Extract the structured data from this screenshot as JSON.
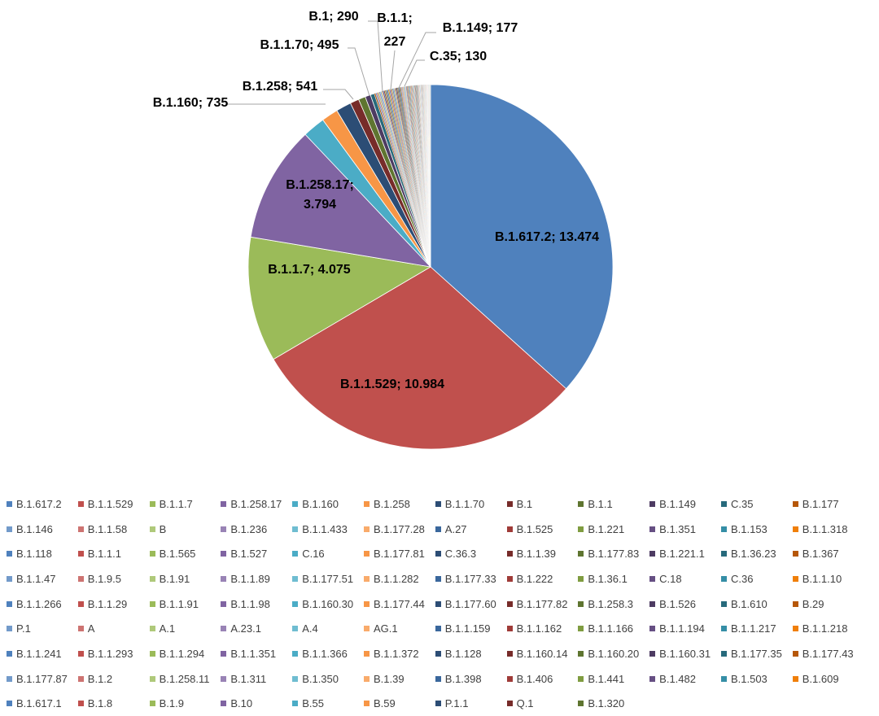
{
  "chart_data": {
    "type": "pie",
    "title": "",
    "legend_position": "bottom",
    "slices": [
      {
        "label": "B.1.617.2",
        "value": 13474,
        "display": "13.474",
        "color": "#4F81BD",
        "label_text": "B.1.617.2; 13.474"
      },
      {
        "label": "B.1.1.529",
        "value": 10984,
        "display": "10.984",
        "color": "#C0504D",
        "label_text": "B.1.1.529; 10.984"
      },
      {
        "label": "B.1.1.7",
        "value": 4075,
        "display": "4.075",
        "color": "#9BBB59",
        "label_text": "B.1.1.7; 4.075"
      },
      {
        "label": "B.1.258.17",
        "value": 3794,
        "display": "3.794",
        "color": "#8064A2",
        "label_text": "B.1.258.17; 3.794"
      },
      {
        "label": "B.1.160",
        "value": 735,
        "display": "735",
        "color": "#4BACC6",
        "label_text": "B.1.160; 735"
      },
      {
        "label": "B.1.258",
        "value": 541,
        "display": "541",
        "color": "#F79646",
        "label_text": "B.1.258; 541"
      },
      {
        "label": "B.1.1.70",
        "value": 495,
        "display": "495",
        "color": "#2C4D75",
        "label_text": "B.1.1.70; 495"
      },
      {
        "label": "B.1",
        "value": 290,
        "display": "290",
        "color": "#772C2A",
        "label_text": "B.1; 290"
      },
      {
        "label": "B.1.1",
        "value": 227,
        "display": "227",
        "color": "#5F7530",
        "label_text_lines": [
          "B.1.1;",
          "227"
        ]
      },
      {
        "label": "B.1.149",
        "value": 177,
        "display": "177",
        "color": "#4D3B62",
        "label_text": "B.1.149; 177"
      },
      {
        "label": "C.35",
        "value": 130,
        "display": "130",
        "color": "#276A7C",
        "label_text": "C.35; 130"
      }
    ],
    "legend_colors": [
      "#4F81BD",
      "#C0504D",
      "#9BBB59",
      "#8064A2",
      "#4BACC6",
      "#F79646",
      "#2C4D75",
      "#772C2A",
      "#5F7530",
      "#4D3B62",
      "#276A7C",
      "#B65708",
      "#729ACA",
      "#CD7371",
      "#AFC97A",
      "#9983B5",
      "#6FBDD1",
      "#F9AB6B",
      "#3A679C",
      "#9F3B38",
      "#7F9C40",
      "#664F83",
      "#358EA6",
      "#F07F09"
    ],
    "legend": [
      "B.1.617.2",
      "B.1.1.529",
      "B.1.1.7",
      "B.1.258.17",
      "B.1.160",
      "B.1.258",
      "B.1.1.70",
      "B.1",
      "B.1.1",
      "B.1.149",
      "C.35",
      "B.1.177",
      "B.1.146",
      "B.1.1.58",
      "B",
      "B.1.236",
      "B.1.1.433",
      "B.1.177.28",
      "A.27",
      "B.1.525",
      "B.1.221",
      "B.1.351",
      "B.1.153",
      "B.1.1.318",
      "B.1.118",
      "B.1.1.1",
      "B.1.565",
      "B.1.527",
      "C.16",
      "B.1.177.81",
      "C.36.3",
      "B.1.1.39",
      "B.1.177.83",
      "B.1.221.1",
      "B.1.36.23",
      "B.1.367",
      "B.1.1.47",
      "B.1.9.5",
      "B.1.91",
      "B.1.1.89",
      "B.1.177.51",
      "B.1.1.282",
      "B.1.177.33",
      "B.1.222",
      "B.1.36.1",
      "C.18",
      "C.36",
      "B.1.1.10",
      "B.1.1.266",
      "B.1.1.29",
      "B.1.1.91",
      "B.1.1.98",
      "B.1.160.30",
      "B.1.177.44",
      "B.1.177.60",
      "B.1.177.82",
      "B.1.258.3",
      "B.1.526",
      "B.1.610",
      "B.29",
      "P.1",
      "A",
      "A.1",
      "A.23.1",
      "A.4",
      "AG.1",
      "B.1.1.159",
      "B.1.1.162",
      "B.1.1.166",
      "B.1.1.194",
      "B.1.1.217",
      "B.1.1.218",
      "B.1.1.241",
      "B.1.1.293",
      "B.1.1.294",
      "B.1.1.351",
      "B.1.1.366",
      "B.1.1.372",
      "B.1.128",
      "B.1.160.14",
      "B.1.160.20",
      "B.1.160.31",
      "B.1.177.35",
      "B.1.177.43",
      "B.1.177.87",
      "B.1.2",
      "B.1.258.11",
      "B.1.311",
      "B.1.350",
      "B.1.39",
      "B.1.398",
      "B.1.406",
      "B.1.441",
      "B.1.482",
      "B.1.503",
      "B.1.609",
      "B.1.617.1",
      "B.1.8",
      "B.1.9",
      "B.10",
      "B.55",
      "B.59",
      "P.1.1",
      "Q.1",
      "B.1.320"
    ],
    "other_small_slices_total_fraction": 0.05
  }
}
